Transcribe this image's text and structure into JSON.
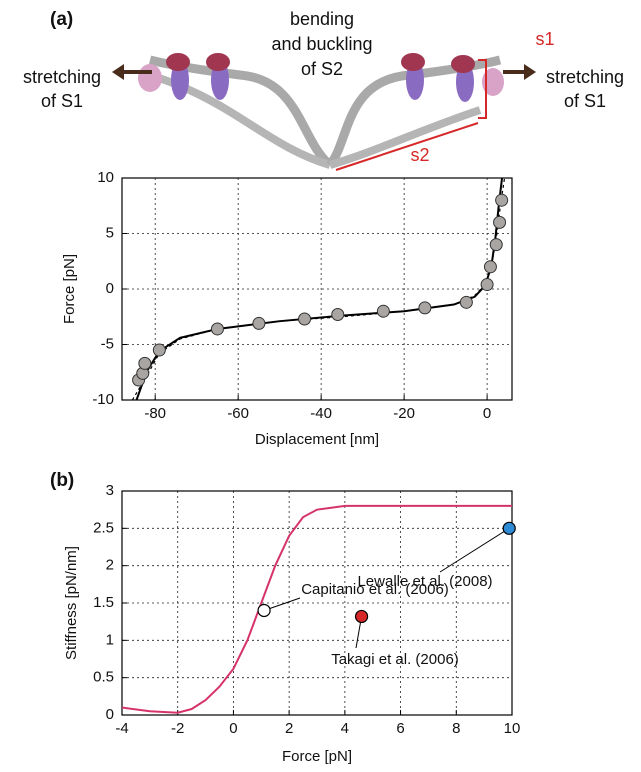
{
  "diagram": {
    "panel_label": "(a)",
    "center_label": [
      "bending",
      "and buckling",
      "of S2"
    ],
    "left_label": [
      "stretching",
      "of S1"
    ],
    "right_label": [
      "stretching",
      "of S1"
    ],
    "s1": "s1",
    "s2": "s2"
  },
  "chart_data": [
    {
      "type": "scatter",
      "xlabel": "Displacement [nm]",
      "ylabel": "Force [pN]",
      "xlim": [
        -88,
        6
      ],
      "ylim": [
        -10,
        10
      ],
      "xticks": [
        -80,
        -60,
        -40,
        -20,
        0
      ],
      "yticks": [
        -10,
        -5,
        0,
        5,
        10
      ],
      "grid": true,
      "series": [
        {
          "style": "dashed",
          "color": "#000000",
          "x": [
            -85.5,
            -82,
            -79,
            -74,
            -65,
            -50,
            -35,
            -20,
            -8,
            -3,
            -0.5,
            1,
            2.2,
            3.2,
            4.2
          ],
          "values": [
            -10,
            -7.8,
            -5.8,
            -4.5,
            -3.6,
            -2.9,
            -2.5,
            -2.0,
            -1.4,
            -0.6,
            0.4,
            2,
            4.5,
            7.5,
            10
          ]
        },
        {
          "style": "line",
          "color": "#000000",
          "x": [
            -84.5,
            -82,
            -79,
            -74,
            -65,
            -50,
            -35,
            -20,
            -8,
            -3,
            -0.5,
            1,
            2,
            2.8,
            3.6
          ],
          "values": [
            -10,
            -7.4,
            -5.6,
            -4.4,
            -3.6,
            -2.9,
            -2.4,
            -2.0,
            -1.4,
            -0.7,
            0.3,
            2,
            4.6,
            7.5,
            10
          ]
        },
        {
          "style": "markers",
          "color": "#a9a5a2",
          "x": [
            -84,
            -83,
            -82.5,
            -79,
            -65,
            -55,
            -44,
            -36,
            -25,
            -15,
            -5,
            0,
            0.8,
            2.2,
            3,
            3.5
          ],
          "values": [
            -8.2,
            -7.6,
            -6.7,
            -5.5,
            -3.6,
            -3.1,
            -2.7,
            -2.3,
            -2.0,
            -1.7,
            -1.2,
            0.4,
            2.0,
            4.0,
            6.0,
            8.0
          ]
        }
      ]
    },
    {
      "type": "line",
      "label": "(b)",
      "xlabel": "Force [pN]",
      "ylabel": "Stiffness [pN/nm]",
      "xlim": [
        -4,
        10
      ],
      "ylim": [
        0,
        3
      ],
      "xticks": [
        -4,
        -2,
        0,
        2,
        4,
        6,
        8,
        10
      ],
      "yticks": [
        0,
        0.5,
        1,
        1.5,
        2,
        2.5,
        3
      ],
      "grid": true,
      "series": [
        {
          "style": "line",
          "color": "#d6336c",
          "x": [
            -4,
            -3,
            -2,
            -1.5,
            -1,
            -0.5,
            0,
            0.5,
            1,
            1.5,
            2,
            2.5,
            3,
            4,
            6,
            10
          ],
          "values": [
            0.1,
            0.05,
            0.03,
            0.08,
            0.2,
            0.38,
            0.62,
            1.0,
            1.5,
            2.0,
            2.4,
            2.65,
            2.75,
            2.8,
            2.8,
            2.8
          ]
        }
      ],
      "annotations": [
        {
          "text": "Capitanio et al. (2006)",
          "x": 1.1,
          "y": 1.4,
          "color": "#ffffff"
        },
        {
          "text": "Takagi et al. (2006)",
          "x": 4.6,
          "y": 1.32,
          "color": "#d62828"
        },
        {
          "text": "Lewalle et al. (2008)",
          "x": 9.9,
          "y": 2.5,
          "color": "#2e8bd6"
        }
      ]
    }
  ]
}
